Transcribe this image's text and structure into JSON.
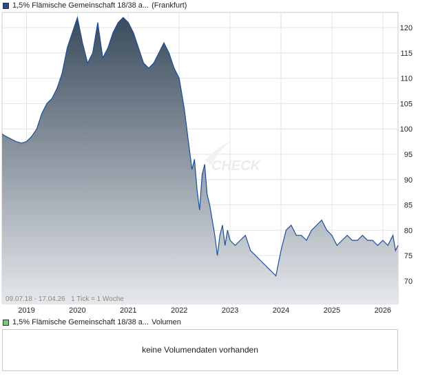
{
  "header": {
    "title": "1,5% Flämische Gemeinschaft 18/38 a...",
    "exchange": "(Frankfurt)",
    "swatch_color": "#1f4e9e"
  },
  "volume_panel": {
    "title": "1,5% Flämische Gemeinschaft 18/38 a...",
    "label": "Volumen",
    "swatch_color": "#6fcf6f",
    "message": "keine Volumendaten vorhanden"
  },
  "footer_note": "09.07.18 - 17.04.26   1 Tick = 1 Woche",
  "watermark": "CHECK",
  "chart_data": {
    "type": "area",
    "line_color": "#1a4d9c",
    "fill_gradient": [
      "#3a4b5c",
      "#e6e8ec"
    ],
    "grid": true,
    "ylim": [
      65.5,
      123
    ],
    "xlim": [
      2018.52,
      2026.3
    ],
    "yticks": [
      70,
      75,
      80,
      85,
      90,
      95,
      100,
      105,
      110,
      115,
      120
    ],
    "xticks": [
      2019,
      2020,
      2021,
      2022,
      2023,
      2024,
      2025,
      2026
    ],
    "x": [
      2018.52,
      2018.6,
      2018.7,
      2018.8,
      2018.9,
      2019.0,
      2019.1,
      2019.2,
      2019.3,
      2019.4,
      2019.5,
      2019.6,
      2019.7,
      2019.8,
      2019.9,
      2020.0,
      2020.1,
      2020.2,
      2020.3,
      2020.4,
      2020.5,
      2020.6,
      2020.7,
      2020.8,
      2020.9,
      2021.0,
      2021.1,
      2021.2,
      2021.3,
      2021.4,
      2021.5,
      2021.6,
      2021.7,
      2021.8,
      2021.9,
      2022.0,
      2022.05,
      2022.1,
      2022.15,
      2022.2,
      2022.25,
      2022.3,
      2022.35,
      2022.4,
      2022.45,
      2022.5,
      2022.55,
      2022.6,
      2022.65,
      2022.7,
      2022.75,
      2022.8,
      2022.85,
      2022.9,
      2022.95,
      2023.0,
      2023.1,
      2023.2,
      2023.3,
      2023.4,
      2023.5,
      2023.6,
      2023.7,
      2023.8,
      2023.9,
      2024.0,
      2024.1,
      2024.2,
      2024.3,
      2024.4,
      2024.5,
      2024.6,
      2024.7,
      2024.8,
      2024.9,
      2025.0,
      2025.1,
      2025.2,
      2025.3,
      2025.4,
      2025.5,
      2025.6,
      2025.7,
      2025.8,
      2025.9,
      2026.0,
      2026.1,
      2026.2,
      2026.25,
      2026.3
    ],
    "values": [
      99,
      98.5,
      98,
      97.5,
      97.2,
      97.5,
      98.5,
      100,
      103,
      105,
      106,
      108,
      111,
      116,
      119,
      122,
      117,
      113,
      115,
      121,
      114,
      116,
      119,
      121,
      122,
      121,
      119,
      116,
      113,
      112,
      113,
      115,
      117,
      115,
      112,
      110,
      107,
      104,
      100,
      96,
      92,
      94,
      88,
      84,
      91,
      93,
      87,
      85,
      82,
      79,
      75,
      79,
      81,
      77,
      80,
      78,
      77,
      78,
      79,
      76,
      75,
      74,
      73,
      72,
      71,
      76,
      80,
      81,
      79,
      79,
      78,
      80,
      81,
      82,
      80,
      79,
      77,
      78,
      79,
      78,
      78,
      79,
      78,
      78,
      77,
      78,
      77,
      79,
      76,
      77
    ]
  }
}
